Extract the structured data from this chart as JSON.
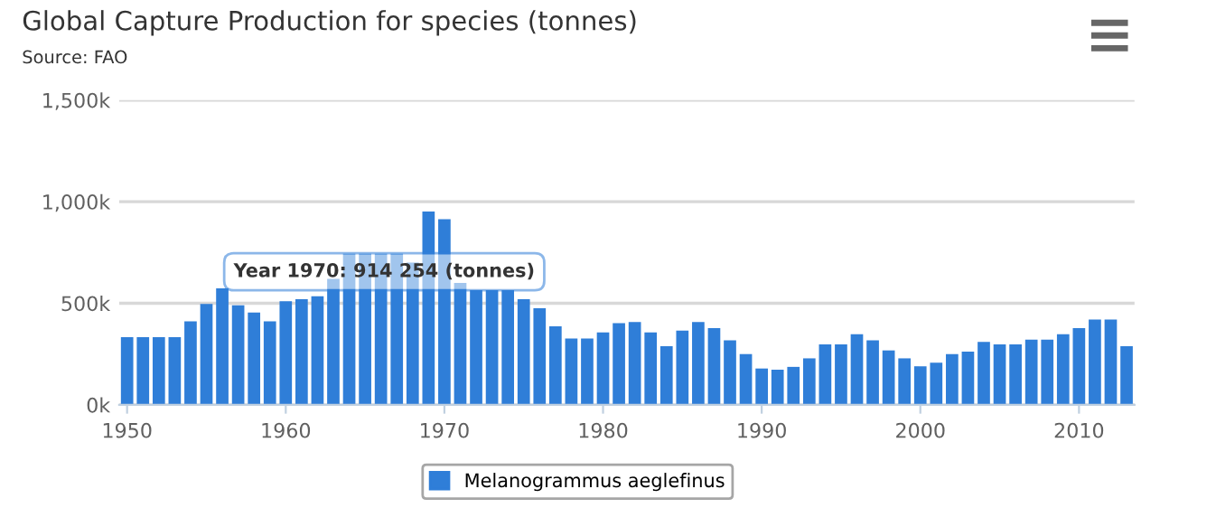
{
  "chart_data": {
    "type": "bar",
    "title": "Global Capture Production for species (tonnes)",
    "subtitle": "Source: FAO",
    "x": [
      1950,
      1951,
      1952,
      1953,
      1954,
      1955,
      1956,
      1957,
      1958,
      1959,
      1960,
      1961,
      1962,
      1963,
      1964,
      1965,
      1966,
      1967,
      1968,
      1969,
      1970,
      1971,
      1972,
      1973,
      1974,
      1975,
      1976,
      1977,
      1978,
      1979,
      1980,
      1981,
      1982,
      1983,
      1984,
      1985,
      1986,
      1987,
      1988,
      1989,
      1990,
      1991,
      1992,
      1993,
      1994,
      1995,
      1996,
      1997,
      1998,
      1999,
      2000,
      2001,
      2002,
      2003,
      2004,
      2005,
      2006,
      2007,
      2008,
      2009,
      2010,
      2011,
      2012,
      2013
    ],
    "series": [
      {
        "name": "Melanogrammus aeglefinus",
        "color": "#2f7ed8",
        "values": [
          333000,
          333000,
          333000,
          333000,
          411000,
          497000,
          574000,
          490000,
          455000,
          411000,
          510000,
          520000,
          535000,
          620000,
          744000,
          744000,
          744000,
          744000,
          700000,
          952000,
          914254,
          600000,
          565000,
          565000,
          565000,
          520000,
          476000,
          387000,
          327000,
          327000,
          357000,
          402000,
          408000,
          357000,
          289000,
          366000,
          408000,
          378000,
          318000,
          250000,
          179000,
          173000,
          187000,
          229000,
          298000,
          298000,
          348000,
          318000,
          268000,
          229000,
          190000,
          208000,
          250000,
          262000,
          310000,
          298000,
          298000,
          321000,
          321000,
          348000,
          378000,
          420000,
          420000,
          289000
        ]
      }
    ],
    "xlim": [
      1949.5,
      2013.5
    ],
    "xticks": [
      1950,
      1960,
      1970,
      1980,
      1990,
      2000,
      2010
    ],
    "ylim": [
      0,
      1500000
    ],
    "yticks": [
      {
        "value": 0,
        "label": "0k"
      },
      {
        "value": 500000,
        "label": "500k"
      },
      {
        "value": 1000000,
        "label": "1,000k"
      },
      {
        "value": 1500000,
        "label": "1,500k"
      }
    ],
    "grid": "y",
    "legend": "bottom",
    "annotations": [
      {
        "text": "Year 1970: 914 254 (tonnes)",
        "x": 1970,
        "y": 914254
      }
    ]
  }
}
